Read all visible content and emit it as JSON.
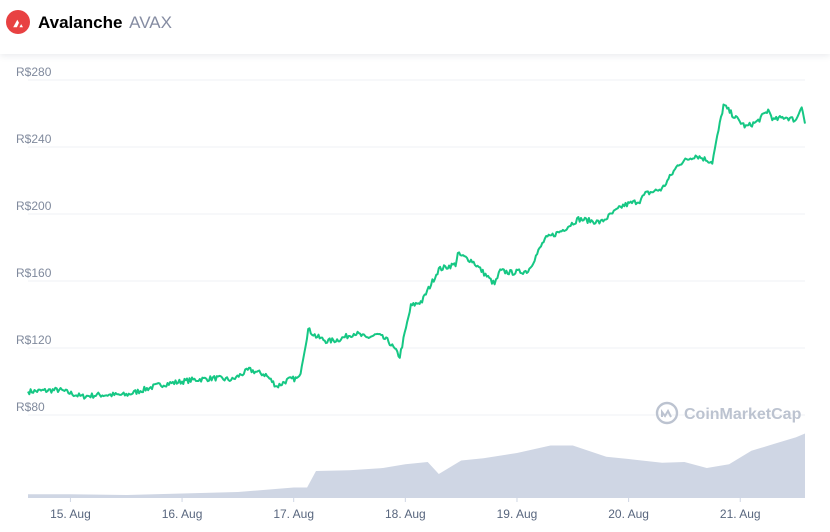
{
  "header": {
    "name": "Avalanche",
    "symbol": "AVAX",
    "logo_icon": "avalanche-logo-icon",
    "logo_color": "#e84142"
  },
  "watermark": {
    "text": "CoinMarketCap",
    "icon": "coinmarketcap-logo-icon"
  },
  "chart_data": {
    "type": "line",
    "x_tick_labels": [
      "15. Aug",
      "16. Aug",
      "17. Aug",
      "18. Aug",
      "19. Aug",
      "20. Aug",
      "21. Aug"
    ],
    "y_tick_labels": [
      "R$80",
      "R$120",
      "R$160",
      "R$200",
      "R$240",
      "R$280"
    ],
    "y_ticks": [
      80,
      120,
      160,
      200,
      240,
      280
    ],
    "ylim": [
      80,
      280
    ],
    "xlim": [
      14.62,
      21.58
    ],
    "grid": true,
    "line_color": "#16c784",
    "volume_color": "#cfd6e4",
    "series": [
      {
        "x": [
          14.62,
          14.9,
          15.1,
          15.25,
          15.5,
          15.8,
          16.0,
          16.1,
          16.3,
          16.45,
          16.6,
          16.75,
          16.85,
          16.95,
          17.05,
          17.13,
          17.2,
          17.3,
          17.4,
          17.55,
          17.65,
          17.75,
          17.85,
          17.95,
          18.05,
          18.15,
          18.3,
          18.45,
          18.47,
          18.6,
          18.8,
          18.85,
          18.95,
          19.1,
          19.25,
          19.4,
          19.55,
          19.75,
          19.95,
          20.1,
          20.15,
          20.3,
          20.45,
          20.6,
          20.75,
          20.85,
          20.95,
          21.05,
          21.15,
          21.25,
          21.3,
          21.4,
          21.5,
          21.55,
          21.58
        ],
        "y": [
          94,
          95,
          91,
          92,
          92,
          98,
          100,
          101,
          102,
          101,
          107,
          104,
          97,
          101,
          102,
          131,
          127,
          124,
          125,
          129,
          126,
          128,
          124,
          115,
          145,
          148,
          167,
          170,
          176,
          172,
          158,
          166,
          165,
          166,
          185,
          190,
          197,
          195,
          205,
          208,
          212,
          215,
          230,
          235,
          231,
          265,
          258,
          252,
          255,
          262,
          256,
          258,
          256,
          265,
          254
        ]
      }
    ],
    "volume": {
      "x": [
        14.62,
        15.0,
        15.5,
        16.0,
        16.5,
        17.0,
        17.12,
        17.2,
        17.5,
        17.8,
        18.0,
        18.2,
        18.3,
        18.5,
        18.7,
        19.0,
        19.3,
        19.5,
        19.8,
        20.0,
        20.3,
        20.5,
        20.7,
        20.9,
        21.1,
        21.3,
        21.5,
        21.58
      ],
      "level": [
        0.05,
        0.05,
        0.04,
        0.06,
        0.08,
        0.14,
        0.14,
        0.36,
        0.37,
        0.4,
        0.45,
        0.48,
        0.32,
        0.5,
        0.53,
        0.6,
        0.7,
        0.7,
        0.55,
        0.52,
        0.47,
        0.48,
        0.4,
        0.45,
        0.63,
        0.72,
        0.81,
        0.86
      ]
    }
  }
}
